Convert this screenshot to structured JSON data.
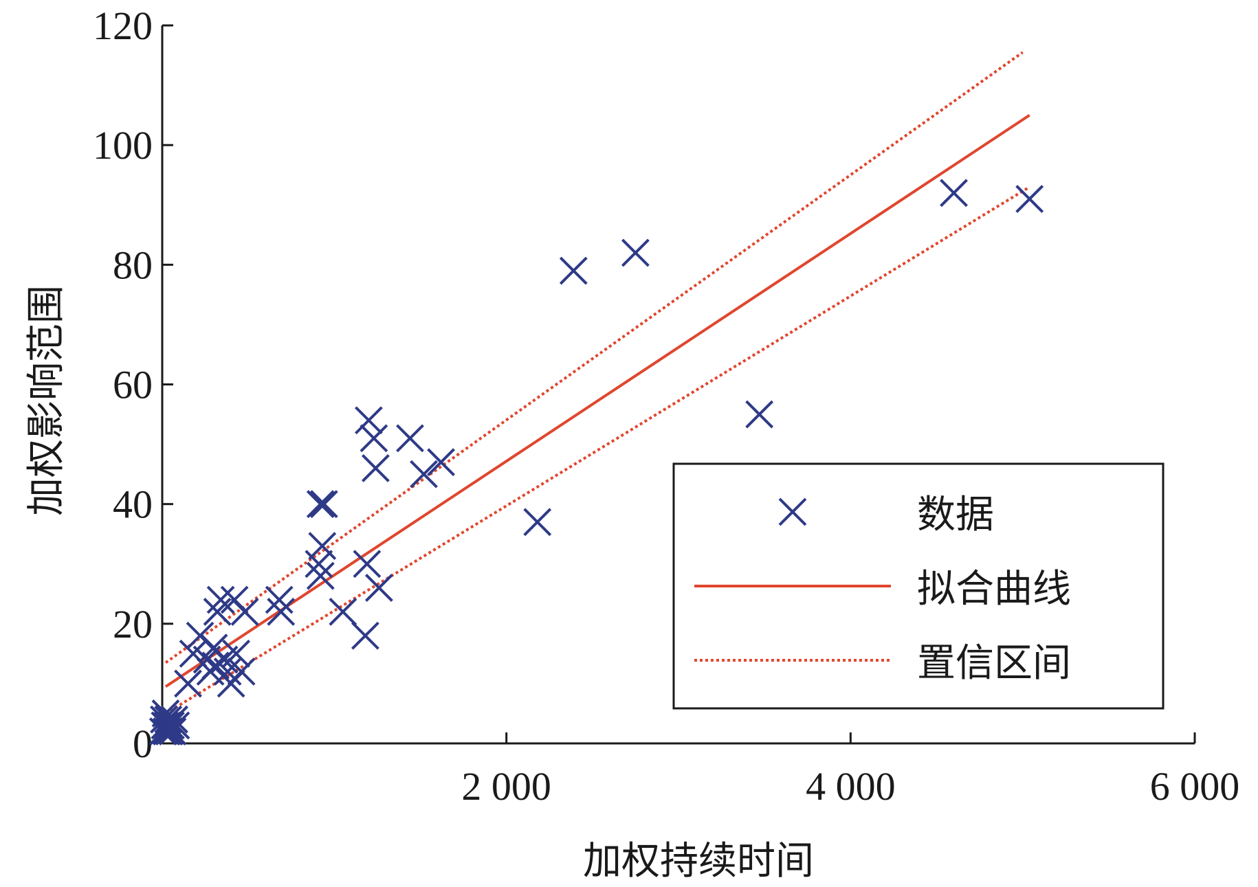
{
  "chart_data": {
    "type": "scatter",
    "title": "",
    "xlabel": "加权持续时间",
    "ylabel": "加权影响范围",
    "xlim": [
      0,
      6000
    ],
    "ylim": [
      0,
      120
    ],
    "x_ticks": [
      2000,
      4000,
      6000
    ],
    "x_tick_labels": [
      "2 000",
      "4 000",
      "6 000"
    ],
    "y_ticks": [
      0,
      20,
      40,
      60,
      80,
      100,
      120
    ],
    "y_tick_labels": [
      "0",
      "20",
      "40",
      "60",
      "80",
      "100",
      "120"
    ],
    "grid": false,
    "legend_position": "lower-right",
    "series": [
      {
        "name": "数据",
        "kind": "marker",
        "marker": "x",
        "color": "#2e3a87",
        "points": [
          [
            5,
            2
          ],
          [
            10,
            4
          ],
          [
            15,
            3
          ],
          [
            20,
            5
          ],
          [
            25,
            2
          ],
          [
            30,
            3
          ],
          [
            35,
            4
          ],
          [
            40,
            2
          ],
          [
            45,
            3
          ],
          [
            50,
            3
          ],
          [
            60,
            2
          ],
          [
            70,
            4
          ],
          [
            80,
            3
          ],
          [
            150,
            10
          ],
          [
            180,
            15
          ],
          [
            220,
            18
          ],
          [
            260,
            14
          ],
          [
            280,
            12
          ],
          [
            300,
            16
          ],
          [
            310,
            13
          ],
          [
            320,
            22
          ],
          [
            340,
            24
          ],
          [
            360,
            14
          ],
          [
            380,
            12
          ],
          [
            400,
            10
          ],
          [
            420,
            24
          ],
          [
            430,
            15
          ],
          [
            460,
            12
          ],
          [
            480,
            22
          ],
          [
            680,
            24
          ],
          [
            690,
            22
          ],
          [
            920,
            40
          ],
          [
            940,
            40
          ],
          [
            930,
            33
          ],
          [
            910,
            30
          ],
          [
            920,
            28
          ],
          [
            1050,
            22
          ],
          [
            1180,
            18
          ],
          [
            1190,
            30
          ],
          [
            1260,
            26
          ],
          [
            1200,
            54
          ],
          [
            1230,
            51
          ],
          [
            1240,
            46
          ],
          [
            1440,
            51
          ],
          [
            1520,
            45
          ],
          [
            1620,
            47
          ],
          [
            2180,
            37
          ],
          [
            2390,
            79
          ],
          [
            2750,
            82
          ],
          [
            3470,
            55
          ],
          [
            4600,
            92
          ],
          [
            5040,
            91
          ]
        ]
      },
      {
        "name": "拟合曲线",
        "kind": "line",
        "style": "solid",
        "color": "#e0462e",
        "x": [
          20,
          5040
        ],
        "y": [
          9.5,
          105
        ]
      },
      {
        "name": "置信区间",
        "kind": "line",
        "style": "dotted",
        "color": "#e0462e",
        "bands": [
          {
            "x": [
              20,
              5000
            ],
            "y": [
              13.5,
              115.5
            ]
          },
          {
            "x": [
              20,
              5040
            ],
            "y": [
              5,
              93
            ]
          }
        ]
      }
    ],
    "legend": {
      "entries": [
        {
          "label": "数据",
          "symbol": "x",
          "color": "#2e3a87"
        },
        {
          "label": "拟合曲线",
          "symbol": "solid-line",
          "color": "#e0462e"
        },
        {
          "label": "置信区间",
          "symbol": "dotted-line",
          "color": "#e0462e"
        }
      ]
    },
    "colors": {
      "axis": "#1a1a1a",
      "marker": "#2e3a87",
      "fit": "#e0462e"
    }
  }
}
